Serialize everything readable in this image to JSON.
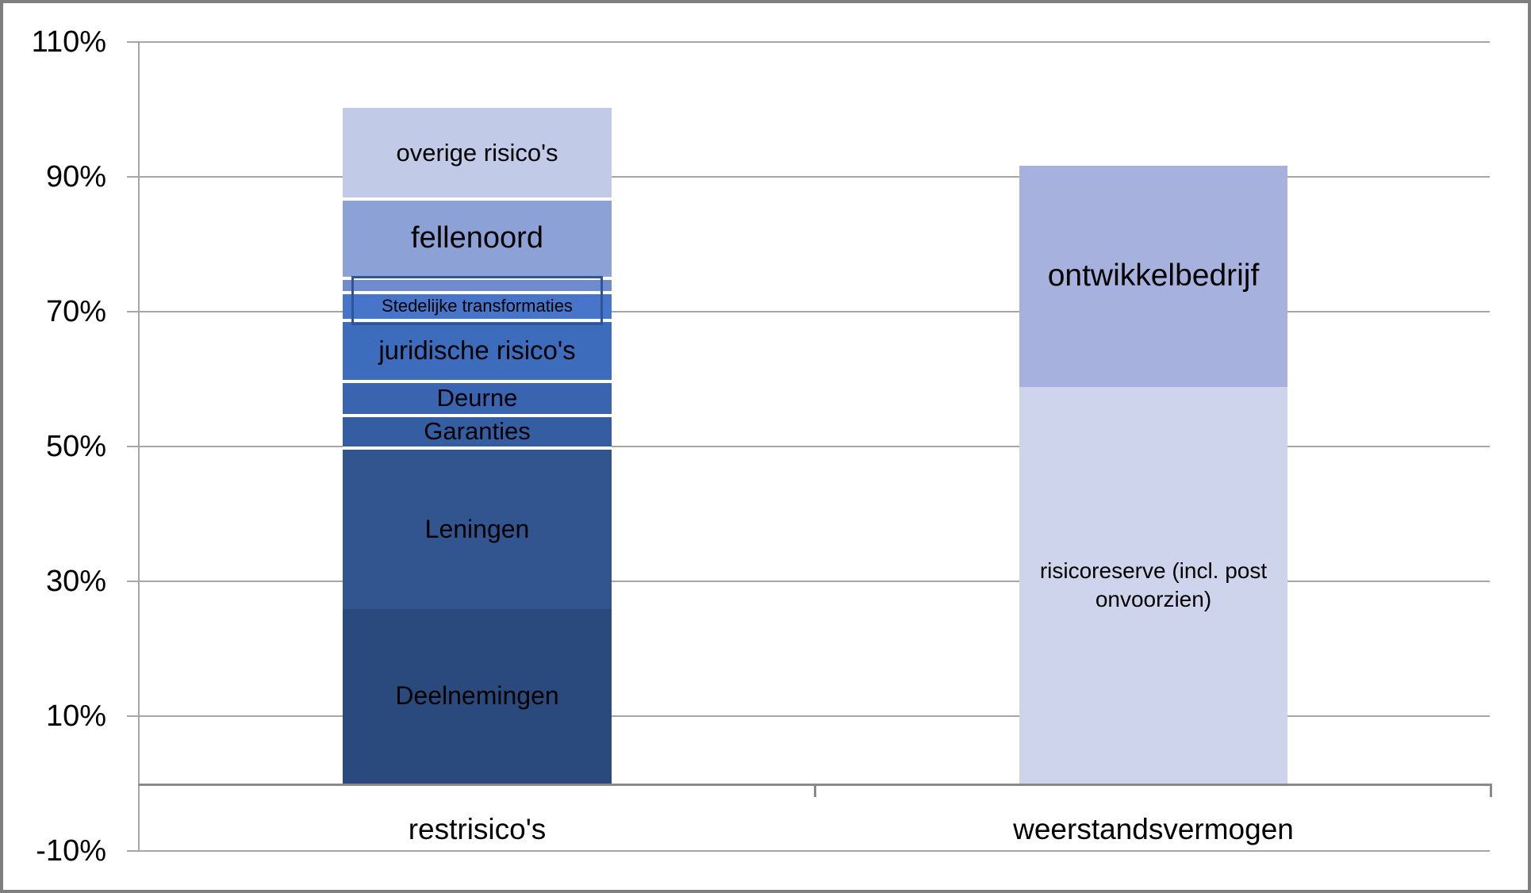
{
  "chart_data": {
    "type": "bar",
    "variant": "stacked-column",
    "title": "",
    "xlabel": "",
    "ylabel": "",
    "ylim": [
      -10,
      110
    ],
    "grid": true,
    "legend": "none",
    "yticks": [
      {
        "value": 110,
        "label": "110%"
      },
      {
        "value": 90,
        "label": "90%"
      },
      {
        "value": 70,
        "label": "70%"
      },
      {
        "value": 50,
        "label": "50%"
      },
      {
        "value": 30,
        "label": "30%"
      },
      {
        "value": 10,
        "label": "10%"
      },
      {
        "value": -10,
        "label": "-10%"
      }
    ],
    "categories": [
      "restrisico's",
      "weerstandsvermogen"
    ],
    "bars": [
      {
        "category": "restrisico's",
        "segments": [
          {
            "label": "Deelnemingen",
            "value": 25.9,
            "color": "#2a4a7e"
          },
          {
            "label": "Leningen",
            "value": 24.1,
            "color": "#325590"
          },
          {
            "label": "Garanties",
            "value": 4.8,
            "color": "#355da1"
          },
          {
            "label": "Deurne",
            "value": 5.1,
            "color": "#3a64b0"
          },
          {
            "label": "juridische risico's",
            "value": 9.0,
            "color": "#3e6cbd"
          },
          {
            "label": "Stedelijke transformaties",
            "value": 4.2,
            "color": "#4775c9"
          },
          {
            "label": "",
            "value": 2.1,
            "color": "#6f8bce"
          },
          {
            "label": "fellenoord",
            "value": 11.7,
            "color": "#8ca2d7"
          },
          {
            "label": "overige risico's",
            "value": 13.8,
            "color": "#c1cbe7"
          }
        ]
      },
      {
        "category": "weerstandsvermogen",
        "segments": [
          {
            "label": "risicoreserve (incl. post\nonvoorzien)",
            "value": 58.8,
            "color": "#cdd4ec"
          },
          {
            "label": "ontwikkelbedrijf",
            "value": 33.3,
            "color": "#a6b2dd"
          }
        ]
      }
    ],
    "annotation_box": {
      "around_segment": "Stedelijke transformaties",
      "border_color": "#2f5597"
    },
    "colors": {
      "gridline": "#a6a6a6",
      "zero_axis_line": "#8a8a8a",
      "outer_frame": "#7f7f7f",
      "label_text": "#000000"
    }
  }
}
